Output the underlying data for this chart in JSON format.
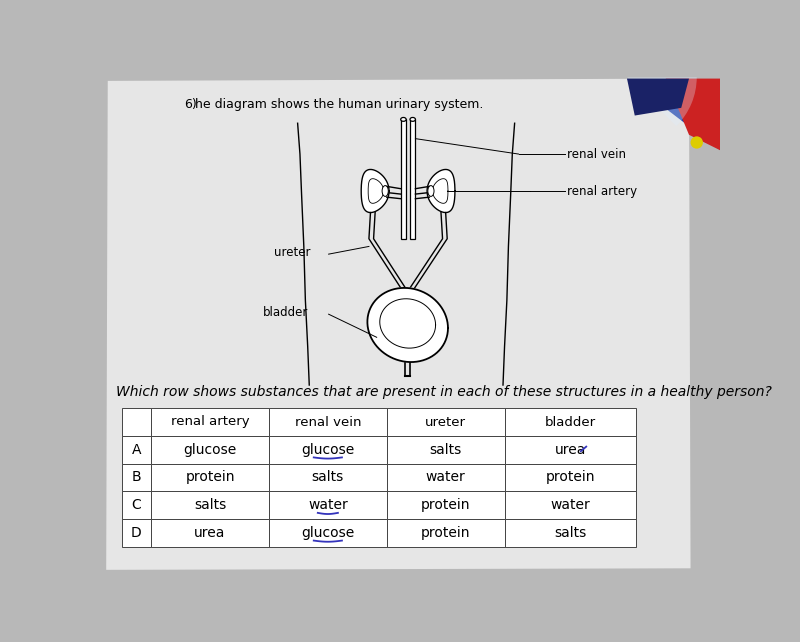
{
  "bg_color": "#b8b8b8",
  "page_color": "#e8e8e8",
  "question_number": "6)",
  "question_text": "he diagram shows the human urinary system.",
  "labels": {
    "renal_vein": "renal vein",
    "renal_artery": "renal artery",
    "ureter": "ureter",
    "bladder": "bladder"
  },
  "table_question": "Which row shows substances that are present in each of these structures in a healthy person?",
  "table_headers": [
    "",
    "renal artery",
    "renal vein",
    "ureter",
    "bladder"
  ],
  "table_rows": [
    [
      "A",
      "glucose",
      "glucose",
      "salts",
      "urea"
    ],
    [
      "B",
      "protein",
      "salts",
      "water",
      "protein"
    ],
    [
      "C",
      "salts",
      "water",
      "protein",
      "water"
    ],
    [
      "D",
      "urea",
      "glucose",
      "protein",
      "salts"
    ]
  ],
  "font_size_question": 9,
  "font_size_table": 10,
  "font_size_label": 8.5
}
